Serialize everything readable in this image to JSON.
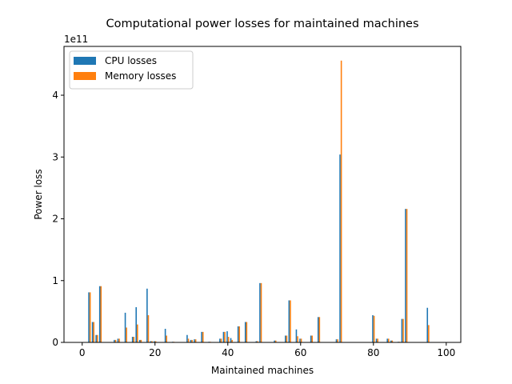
{
  "chart_data": {
    "type": "bar",
    "title": "Computational power losses for maintained machines",
    "xlabel": "Maintained machines",
    "ylabel": "Power loss",
    "y_offset_text": "1e11",
    "y_scale_exponent": 11,
    "xlim": [
      -5,
      104
    ],
    "ylim": [
      0,
      4.79
    ],
    "x_ticks": [
      0,
      20,
      40,
      60,
      80,
      100
    ],
    "y_ticks": [
      0,
      1,
      2,
      3,
      4
    ],
    "grid": false,
    "legend_position": "top-left",
    "bar_width": 0.35,
    "series": [
      {
        "name": "CPU losses",
        "color": "#1f77b4",
        "points": [
          [
            2,
            0.81
          ],
          [
            3,
            0.33
          ],
          [
            4,
            0.12
          ],
          [
            5,
            0.91
          ],
          [
            9,
            0.04
          ],
          [
            10,
            0.06
          ],
          [
            12,
            0.48
          ],
          [
            14,
            0.09
          ],
          [
            15,
            0.57
          ],
          [
            16,
            0.04
          ],
          [
            18,
            0.87
          ],
          [
            19,
            0.02
          ],
          [
            20,
            0.02
          ],
          [
            23,
            0.22
          ],
          [
            25,
            0.01
          ],
          [
            29,
            0.12
          ],
          [
            30,
            0.04
          ],
          [
            31,
            0.05
          ],
          [
            33,
            0.17
          ],
          [
            35,
            0.01
          ],
          [
            38,
            0.06
          ],
          [
            39,
            0.17
          ],
          [
            40,
            0.18
          ],
          [
            41,
            0.07
          ],
          [
            43,
            0.26
          ],
          [
            45,
            0.33
          ],
          [
            48,
            0.02
          ],
          [
            49,
            0.96
          ],
          [
            53,
            0.03
          ],
          [
            56,
            0.11
          ],
          [
            57,
            0.68
          ],
          [
            59,
            0.21
          ],
          [
            60,
            0.06
          ],
          [
            63,
            0.11
          ],
          [
            65,
            0.41
          ],
          [
            70,
            0.05
          ],
          [
            71,
            3.04
          ],
          [
            80,
            0.44
          ],
          [
            81,
            0.06
          ],
          [
            84,
            0.06
          ],
          [
            85,
            0.03
          ],
          [
            87,
            0.01
          ],
          [
            88,
            0.38
          ],
          [
            89,
            2.16
          ],
          [
            95,
            0.56
          ]
        ]
      },
      {
        "name": "Memory losses",
        "color": "#ff7f0e",
        "points": [
          [
            2,
            0.81
          ],
          [
            3,
            0.33
          ],
          [
            4,
            0.12
          ],
          [
            5,
            0.91
          ],
          [
            9,
            0.04
          ],
          [
            10,
            0.06
          ],
          [
            12,
            0.24
          ],
          [
            14,
            0.09
          ],
          [
            15,
            0.29
          ],
          [
            16,
            0.04
          ],
          [
            18,
            0.44
          ],
          [
            19,
            0.02
          ],
          [
            20,
            0.02
          ],
          [
            23,
            0.11
          ],
          [
            25,
            0.01
          ],
          [
            29,
            0.06
          ],
          [
            30,
            0.04
          ],
          [
            31,
            0.05
          ],
          [
            33,
            0.17
          ],
          [
            35,
            0.01
          ],
          [
            38,
            0.06
          ],
          [
            39,
            0.17
          ],
          [
            40,
            0.09
          ],
          [
            41,
            0.04
          ],
          [
            43,
            0.26
          ],
          [
            45,
            0.33
          ],
          [
            48,
            0.02
          ],
          [
            49,
            0.96
          ],
          [
            53,
            0.03
          ],
          [
            56,
            0.11
          ],
          [
            57,
            0.68
          ],
          [
            59,
            0.1
          ],
          [
            60,
            0.06
          ],
          [
            63,
            0.11
          ],
          [
            65,
            0.41
          ],
          [
            70,
            0.05
          ],
          [
            71,
            4.56
          ],
          [
            80,
            0.43
          ],
          [
            81,
            0.06
          ],
          [
            84,
            0.06
          ],
          [
            85,
            0.03
          ],
          [
            87,
            0.01
          ],
          [
            88,
            0.38
          ],
          [
            89,
            2.16
          ],
          [
            95,
            0.28
          ]
        ]
      }
    ]
  }
}
